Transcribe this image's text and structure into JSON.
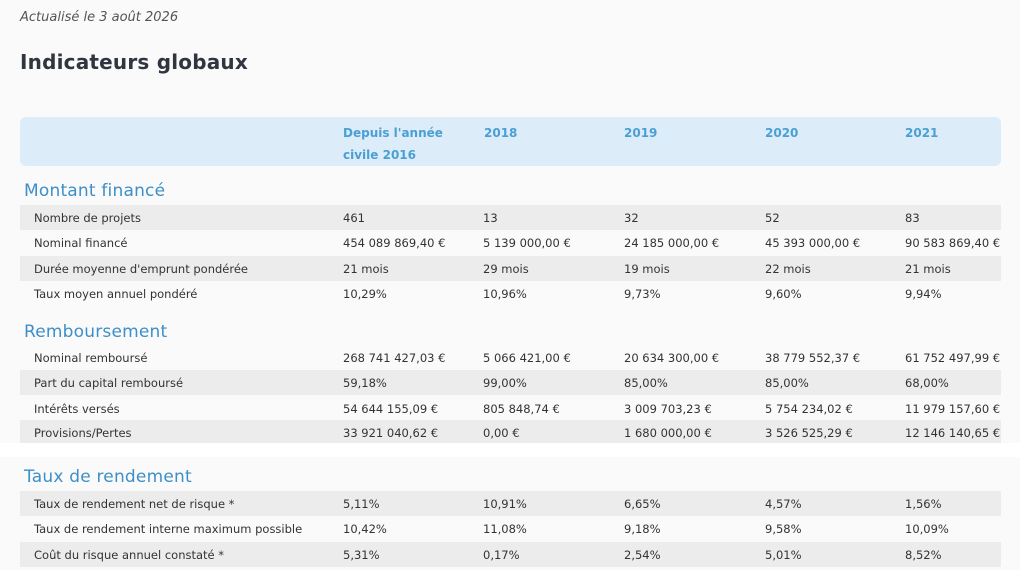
{
  "updated_text": "Actualisé le 3 août 2026",
  "page_title": "Indicateurs globaux",
  "columns": {
    "since_line1": "Depuis l'année",
    "since_line2": "civile 2016",
    "y2018": "2018",
    "y2019": "2019",
    "y2020": "2020",
    "y2021": "2021"
  },
  "sections": {
    "financed": {
      "title": "Montant financé",
      "rows": [
        {
          "label": "Nombre de projets",
          "values": [
            "461",
            "13",
            "32",
            "52",
            "83"
          ]
        },
        {
          "label": "Nominal financé",
          "values": [
            "454 089 869,40 €",
            "5 139 000,00 €",
            "24 185 000,00 €",
            "45 393 000,00 €",
            "90 583 869,40 €"
          ]
        },
        {
          "label": "Durée moyenne d'emprunt pondérée",
          "values": [
            "21 mois",
            "29 mois",
            "19 mois",
            "22 mois",
            "21 mois"
          ]
        },
        {
          "label": "Taux moyen annuel pondéré",
          "values": [
            "10,29%",
            "10,96%",
            "9,73%",
            "9,60%",
            "9,94%"
          ]
        }
      ]
    },
    "repayment": {
      "title": "Remboursement",
      "rows": [
        {
          "label": "Nominal remboursé",
          "values": [
            "268 741 427,03 €",
            "5 066 421,00 €",
            "20 634 300,00 €",
            "38 779 552,37 €",
            "61 752 497,99 €"
          ]
        },
        {
          "label": "Part du capital remboursé",
          "values": [
            "59,18%",
            "99,00%",
            "85,00%",
            "85,00%",
            "68,00%"
          ]
        },
        {
          "label": "Intérêts versés",
          "values": [
            "54 644 155,09 €",
            "805 848,74 €",
            "3 009 703,23 €",
            "5 754 234,02 €",
            "11 979 157,60 €"
          ]
        },
        {
          "label": "Provisions/Pertes",
          "values": [
            "33 921 040,62 €",
            "0,00 €",
            "1 680 000,00 €",
            "3 526 525,29 €",
            "12 146 140,65 €"
          ]
        }
      ]
    },
    "yield": {
      "title": "Taux de rendement",
      "rows": [
        {
          "label": "Taux de rendement net de risque *",
          "values": [
            "5,11%",
            "10,91%",
            "6,65%",
            "4,57%",
            "1,56%"
          ]
        },
        {
          "label": "Taux de rendement interne maximum possible",
          "values": [
            "10,42%",
            "11,08%",
            "9,18%",
            "9,58%",
            "10,09%"
          ]
        },
        {
          "label": "Coût du risque annuel constaté *",
          "values": [
            "5,31%",
            "0,17%",
            "2,54%",
            "5,01%",
            "8,52%"
          ]
        }
      ]
    }
  }
}
